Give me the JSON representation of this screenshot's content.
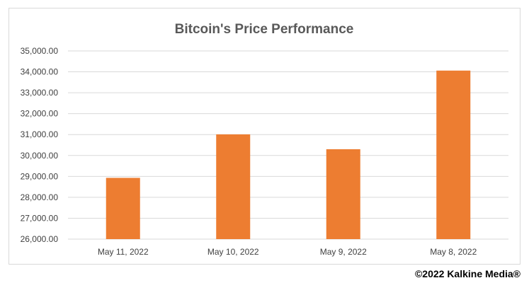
{
  "chart_data": {
    "type": "bar",
    "title": "Bitcoin's Price Performance",
    "categories": [
      "May 11, 2022",
      "May 10, 2022",
      "May 9, 2022",
      "May 8, 2022"
    ],
    "values": [
      28930,
      31010,
      30300,
      34060
    ],
    "ylim": [
      26000,
      35000
    ],
    "yticks": [
      "26,000.00",
      "27,000.00",
      "28,000.00",
      "29,000.00",
      "30,000.00",
      "31,000.00",
      "32,000.00",
      "33,000.00",
      "34,000.00",
      "35,000.00"
    ],
    "ytick_values": [
      26000,
      27000,
      28000,
      29000,
      30000,
      31000,
      32000,
      33000,
      34000,
      35000
    ],
    "xlabel": "",
    "ylabel": "",
    "grid": true,
    "legend": "none",
    "bar_color": "#ed7d31",
    "grid_color": "#d9d9d9"
  },
  "footer": {
    "copyright": "©2022 Kalkine Media®"
  }
}
